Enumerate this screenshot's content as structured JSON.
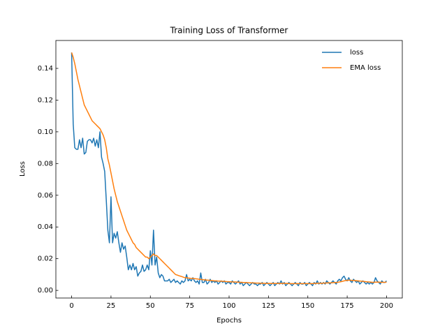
{
  "chart_data": {
    "type": "line",
    "title": "Training Loss of Transformer",
    "xlabel": "Epochs",
    "ylabel": "Loss",
    "x": [
      0,
      1,
      2,
      3,
      4,
      5,
      6,
      7,
      8,
      9,
      10,
      11,
      12,
      13,
      14,
      15,
      16,
      17,
      18,
      19,
      20,
      21,
      22,
      23,
      24,
      25,
      26,
      27,
      28,
      29,
      30,
      31,
      32,
      33,
      34,
      35,
      36,
      37,
      38,
      39,
      40,
      41,
      42,
      43,
      44,
      45,
      46,
      47,
      48,
      49,
      50,
      51,
      52,
      53,
      54,
      55,
      56,
      57,
      58,
      59,
      60,
      61,
      62,
      63,
      64,
      65,
      66,
      67,
      68,
      69,
      70,
      71,
      72,
      73,
      74,
      75,
      76,
      77,
      78,
      79,
      80,
      81,
      82,
      83,
      84,
      85,
      86,
      87,
      88,
      89,
      90,
      91,
      92,
      93,
      94,
      95,
      96,
      97,
      98,
      99,
      100,
      101,
      102,
      103,
      104,
      105,
      106,
      107,
      108,
      109,
      110,
      111,
      112,
      113,
      114,
      115,
      116,
      117,
      118,
      119,
      120,
      121,
      122,
      123,
      124,
      125,
      126,
      127,
      128,
      129,
      130,
      131,
      132,
      133,
      134,
      135,
      136,
      137,
      138,
      139,
      140,
      141,
      142,
      143,
      144,
      145,
      146,
      147,
      148,
      149,
      150,
      151,
      152,
      153,
      154,
      155,
      156,
      157,
      158,
      159,
      160,
      161,
      162,
      163,
      164,
      165,
      166,
      167,
      168,
      169,
      170,
      171,
      172,
      173,
      174,
      175,
      176,
      177,
      178,
      179,
      180,
      181,
      182,
      183,
      184,
      185,
      186,
      187,
      188,
      189,
      190,
      191,
      192,
      193,
      194,
      195,
      196,
      197,
      198,
      199,
      200
    ],
    "series": [
      {
        "name": "loss",
        "color": "#1f77b4",
        "values": [
          0.15,
          0.105,
          0.09,
          0.089,
          0.089,
          0.095,
          0.09,
          0.096,
          0.086,
          0.087,
          0.094,
          0.095,
          0.095,
          0.093,
          0.096,
          0.091,
          0.095,
          0.09,
          0.1,
          0.084,
          0.08,
          0.075,
          0.057,
          0.038,
          0.03,
          0.059,
          0.03,
          0.036,
          0.033,
          0.037,
          0.03,
          0.024,
          0.03,
          0.026,
          0.028,
          0.021,
          0.013,
          0.016,
          0.013,
          0.017,
          0.013,
          0.015,
          0.009,
          0.011,
          0.012,
          0.016,
          0.012,
          0.013,
          0.016,
          0.013,
          0.025,
          0.016,
          0.038,
          0.016,
          0.021,
          0.011,
          0.008,
          0.01,
          0.009,
          0.006,
          0.006,
          0.006,
          0.007,
          0.005,
          0.006,
          0.007,
          0.005,
          0.006,
          0.005,
          0.004,
          0.006,
          0.005,
          0.006,
          0.01,
          0.006,
          0.007,
          0.006,
          0.008,
          0.006,
          0.005,
          0.006,
          0.004,
          0.011,
          0.005,
          0.005,
          0.007,
          0.004,
          0.005,
          0.007,
          0.005,
          0.006,
          0.005,
          0.006,
          0.004,
          0.005,
          0.006,
          0.005,
          0.006,
          0.004,
          0.005,
          0.005,
          0.004,
          0.006,
          0.005,
          0.004,
          0.005,
          0.006,
          0.004,
          0.005,
          0.003,
          0.004,
          0.005,
          0.004,
          0.003,
          0.004,
          0.005,
          0.004,
          0.004,
          0.003,
          0.004,
          0.004,
          0.005,
          0.003,
          0.004,
          0.005,
          0.004,
          0.003,
          0.004,
          0.005,
          0.003,
          0.004,
          0.005,
          0.004,
          0.006,
          0.004,
          0.005,
          0.003,
          0.004,
          0.005,
          0.004,
          0.003,
          0.004,
          0.005,
          0.004,
          0.003,
          0.005,
          0.004,
          0.004,
          0.005,
          0.003,
          0.004,
          0.005,
          0.004,
          0.003,
          0.005,
          0.004,
          0.006,
          0.004,
          0.005,
          0.004,
          0.005,
          0.004,
          0.006,
          0.005,
          0.004,
          0.005,
          0.006,
          0.005,
          0.004,
          0.006,
          0.007,
          0.006,
          0.008,
          0.009,
          0.007,
          0.006,
          0.008,
          0.006,
          0.005,
          0.007,
          0.006,
          0.005,
          0.006,
          0.004,
          0.005,
          0.006,
          0.005,
          0.004,
          0.005,
          0.004,
          0.005,
          0.004,
          0.005,
          0.008,
          0.006,
          0.005,
          0.004,
          0.006,
          0.005,
          0.005,
          0.006
        ]
      },
      {
        "name": "EMA loss",
        "color": "#ff7f0e",
        "values": [
          0.15,
          0.147,
          0.143,
          0.138,
          0.133,
          0.129,
          0.125,
          0.121,
          0.117,
          0.115,
          0.113,
          0.111,
          0.109,
          0.107,
          0.106,
          0.105,
          0.104,
          0.103,
          0.102,
          0.1,
          0.098,
          0.095,
          0.09,
          0.083,
          0.079,
          0.074,
          0.069,
          0.064,
          0.06,
          0.056,
          0.053,
          0.05,
          0.047,
          0.044,
          0.041,
          0.038,
          0.036,
          0.034,
          0.032,
          0.03,
          0.029,
          0.027,
          0.026,
          0.025,
          0.024,
          0.023,
          0.022,
          0.021,
          0.021,
          0.02,
          0.021,
          0.022,
          0.023,
          0.022,
          0.022,
          0.021,
          0.02,
          0.019,
          0.018,
          0.017,
          0.016,
          0.015,
          0.014,
          0.013,
          0.012,
          0.011,
          0.01,
          0.0097,
          0.0093,
          0.009,
          0.0087,
          0.0083,
          0.008,
          0.008,
          0.0078,
          0.0077,
          0.0075,
          0.0075,
          0.0074,
          0.0073,
          0.0072,
          0.007,
          0.007,
          0.0068,
          0.0067,
          0.0066,
          0.0065,
          0.0064,
          0.0063,
          0.0062,
          0.0061,
          0.006,
          0.006,
          0.0059,
          0.0058,
          0.0058,
          0.0057,
          0.0057,
          0.0056,
          0.0055,
          0.0055,
          0.0054,
          0.0054,
          0.0053,
          0.0053,
          0.0052,
          0.0052,
          0.0051,
          0.0051,
          0.005,
          0.005,
          0.0049,
          0.0049,
          0.0048,
          0.0048,
          0.0047,
          0.0047,
          0.0046,
          0.0046,
          0.0046,
          0.0045,
          0.0045,
          0.0045,
          0.0044,
          0.0044,
          0.0044,
          0.0044,
          0.0044,
          0.0044,
          0.0044,
          0.0044,
          0.0044,
          0.0044,
          0.0044,
          0.0044,
          0.0044,
          0.0044,
          0.0044,
          0.0043,
          0.0043,
          0.0043,
          0.0043,
          0.0043,
          0.0043,
          0.0043,
          0.0043,
          0.0043,
          0.0043,
          0.0043,
          0.0043,
          0.0043,
          0.0043,
          0.0043,
          0.0043,
          0.0044,
          0.0044,
          0.0045,
          0.0045,
          0.0045,
          0.0045,
          0.0046,
          0.0046,
          0.0047,
          0.0047,
          0.0048,
          0.0048,
          0.0049,
          0.005,
          0.005,
          0.0051,
          0.0053,
          0.0055,
          0.0057,
          0.006,
          0.0062,
          0.0063,
          0.0064,
          0.0064,
          0.0063,
          0.0063,
          0.0062,
          0.0061,
          0.006,
          0.0059,
          0.0058,
          0.0057,
          0.0056,
          0.0055,
          0.0054,
          0.0053,
          0.0052,
          0.0051,
          0.0051,
          0.0052,
          0.0052,
          0.0052,
          0.0051,
          0.0051,
          0.0051,
          0.0051,
          0.0052
        ]
      }
    ],
    "xlim": [
      -10,
      210
    ],
    "xticks": [
      0,
      25,
      50,
      75,
      100,
      125,
      150,
      175,
      200
    ],
    "ylim": [
      -0.0048,
      0.1576
    ],
    "yticks": [
      {
        "value": 0,
        "label": "0.00"
      },
      {
        "value": 0.02,
        "label": "0.02"
      },
      {
        "value": 0.04,
        "label": "0.04"
      },
      {
        "value": 0.06,
        "label": "0.06"
      },
      {
        "value": 0.08,
        "label": "0.08"
      },
      {
        "value": 0.1,
        "label": "0.10"
      },
      {
        "value": 0.12,
        "label": "0.12"
      },
      {
        "value": 0.14,
        "label": "0.14"
      }
    ],
    "legend": "upper right",
    "grid": false
  }
}
